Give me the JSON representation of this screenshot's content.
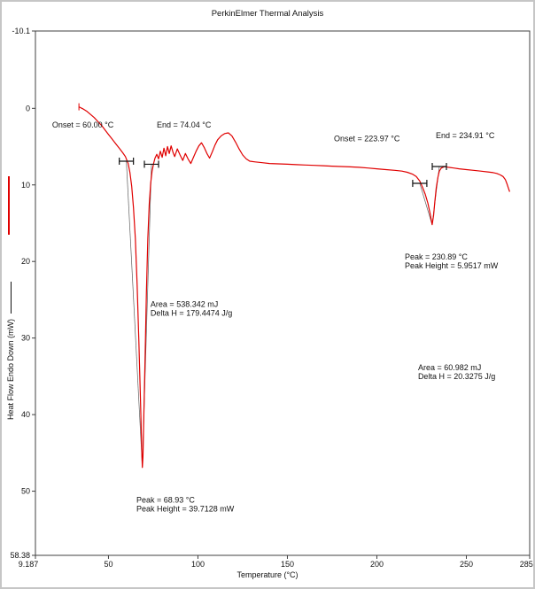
{
  "chart_data": {
    "type": "line",
    "title": "PerkinElmer Thermal Analysis",
    "xlabel": "Temperature (°C)",
    "ylabel": "Heat Flow Endo Down (mW)",
    "xlim": [
      9.187,
      285.4
    ],
    "ylim": [
      -10.1,
      58.38
    ],
    "y_axis_direction": "down",
    "grid": false,
    "colors": {
      "frame": "#404040",
      "text": "#111111",
      "tangent": "#606060"
    },
    "x_ticks": [
      {
        "v": 9.187,
        "label": "9.187"
      },
      {
        "v": 50,
        "label": "50"
      },
      {
        "v": 100,
        "label": "100"
      },
      {
        "v": 150,
        "label": "150"
      },
      {
        "v": 200,
        "label": "200"
      },
      {
        "v": 250,
        "label": "250"
      },
      {
        "v": 285.4,
        "label": "285.4"
      }
    ],
    "y_ticks": [
      {
        "v": -10.1,
        "label": "-10.1"
      },
      {
        "v": 0,
        "label": "0"
      },
      {
        "v": 10,
        "label": "10"
      },
      {
        "v": 20,
        "label": "20"
      },
      {
        "v": 30,
        "label": "30"
      },
      {
        "v": 40,
        "label": "40"
      },
      {
        "v": 50,
        "label": "50"
      },
      {
        "v": 58.38,
        "label": "58.38"
      }
    ],
    "series": [
      {
        "name": "Heat Flow Endo Down",
        "color": "#e00000",
        "points": [
          [
            33.5,
            -0.2
          ],
          [
            36,
            0.1
          ],
          [
            38,
            0.4
          ],
          [
            40,
            0.8
          ],
          [
            42,
            1.2
          ],
          [
            44,
            1.7
          ],
          [
            46,
            2.2
          ],
          [
            48,
            2.8
          ],
          [
            50,
            3.4
          ],
          [
            52,
            4.0
          ],
          [
            54,
            4.6
          ],
          [
            56,
            5.2
          ],
          [
            58,
            5.8
          ],
          [
            59.5,
            6.3
          ],
          [
            61,
            7.2
          ],
          [
            62,
            8.4
          ],
          [
            63,
            10.2
          ],
          [
            64,
            13
          ],
          [
            65,
            17
          ],
          [
            66,
            23
          ],
          [
            67,
            30.5
          ],
          [
            68,
            39
          ],
          [
            68.6,
            44.5
          ],
          [
            68.93,
            46.9
          ],
          [
            69.3,
            45.5
          ],
          [
            69.8,
            40
          ],
          [
            70.5,
            32
          ],
          [
            71.2,
            24
          ],
          [
            72,
            17
          ],
          [
            72.8,
            12.5
          ],
          [
            73.6,
            9.8
          ],
          [
            74.4,
            8.2
          ],
          [
            75.2,
            7.2
          ],
          [
            76,
            6.5
          ],
          [
            77,
            6.0
          ],
          [
            78,
            6.6
          ],
          [
            79,
            5.6
          ],
          [
            80,
            6.4
          ],
          [
            81,
            5.2
          ],
          [
            82,
            6.2
          ],
          [
            83,
            5.0
          ],
          [
            84,
            5.9
          ],
          [
            85,
            4.9
          ],
          [
            86,
            5.7
          ],
          [
            87,
            6.3
          ],
          [
            88.5,
            5.3
          ],
          [
            90,
            6.1
          ],
          [
            91.5,
            6.8
          ],
          [
            93,
            5.9
          ],
          [
            94.5,
            6.6
          ],
          [
            96,
            7.2
          ],
          [
            97.5,
            6.4
          ],
          [
            99,
            5.6
          ],
          [
            100.5,
            4.9
          ],
          [
            102,
            4.5
          ],
          [
            103.5,
            5.1
          ],
          [
            105,
            5.9
          ],
          [
            106.5,
            6.5
          ],
          [
            108,
            5.7
          ],
          [
            109.5,
            4.8
          ],
          [
            111,
            4.1
          ],
          [
            113,
            3.6
          ],
          [
            115,
            3.3
          ],
          [
            117,
            3.2
          ],
          [
            119,
            3.6
          ],
          [
            121,
            4.4
          ],
          [
            123,
            5.3
          ],
          [
            125,
            6.1
          ],
          [
            127,
            6.6
          ],
          [
            129,
            6.9
          ],
          [
            132,
            7.0
          ],
          [
            136,
            7.1
          ],
          [
            140,
            7.2
          ],
          [
            145,
            7.25
          ],
          [
            150,
            7.3
          ],
          [
            155,
            7.35
          ],
          [
            160,
            7.4
          ],
          [
            165,
            7.45
          ],
          [
            170,
            7.5
          ],
          [
            175,
            7.55
          ],
          [
            180,
            7.6
          ],
          [
            185,
            7.65
          ],
          [
            190,
            7.7
          ],
          [
            195,
            7.8
          ],
          [
            200,
            7.9
          ],
          [
            205,
            8.0
          ],
          [
            210,
            8.1
          ],
          [
            214,
            8.2
          ],
          [
            217,
            8.35
          ],
          [
            220,
            8.6
          ],
          [
            222,
            8.9
          ],
          [
            223.97,
            9.5
          ],
          [
            225.5,
            10.3
          ],
          [
            227,
            11.2
          ],
          [
            228.5,
            12.4
          ],
          [
            229.8,
            13.8
          ],
          [
            230.89,
            15.2
          ],
          [
            231.7,
            14.0
          ],
          [
            232.4,
            12.2
          ],
          [
            233.2,
            10.4
          ],
          [
            234.1,
            9.0
          ],
          [
            234.91,
            8.2
          ],
          [
            236,
            7.8
          ],
          [
            238,
            7.6
          ],
          [
            240,
            7.7
          ],
          [
            243,
            7.8
          ],
          [
            246,
            7.9
          ],
          [
            250,
            8.0
          ],
          [
            254,
            8.1
          ],
          [
            258,
            8.2
          ],
          [
            262,
            8.3
          ],
          [
            265,
            8.4
          ],
          [
            267,
            8.5
          ],
          [
            269,
            8.7
          ],
          [
            270.5,
            8.9
          ],
          [
            271.8,
            9.3
          ],
          [
            272.8,
            9.9
          ],
          [
            273.6,
            10.5
          ],
          [
            274.2,
            10.9
          ]
        ]
      }
    ],
    "peaks": [
      {
        "onset_c": 60.0,
        "end_c": 74.04,
        "peak_c": 68.93,
        "peak_height_mw": 39.7128,
        "area_mj": 538.342,
        "delta_h_j_per_g": 179.4474
      },
      {
        "onset_c": 223.97,
        "end_c": 234.91,
        "peak_c": 230.89,
        "peak_height_mw": 5.9517,
        "area_mj": 60.982,
        "delta_h_j_per_g": 20.3275
      }
    ],
    "peak_markers": [
      {
        "t": 60.0,
        "mw": 6.9
      },
      {
        "t": 74.04,
        "mw": 7.3
      },
      {
        "t": 223.97,
        "mw": 9.8
      },
      {
        "t": 234.91,
        "mw": 7.6
      }
    ],
    "tangent_lines": [
      {
        "from": [
          68.93,
          46.9
        ],
        "to": [
          60.0,
          6.9
        ]
      },
      {
        "from": [
          68.93,
          46.9
        ],
        "to": [
          74.04,
          7.3
        ]
      },
      {
        "from": [
          230.89,
          15.2
        ],
        "to": [
          223.97,
          9.8
        ]
      },
      {
        "from": [
          230.89,
          15.2
        ],
        "to": [
          234.91,
          7.6
        ]
      }
    ],
    "annotations": [
      {
        "id": "onset-1",
        "lines": [
          "Onset = 60.00 °C"
        ],
        "t": 18.5,
        "mw": 1.6
      },
      {
        "id": "end-1",
        "lines": [
          "End = 74.04 °C"
        ],
        "t": 77.0,
        "mw": 1.6
      },
      {
        "id": "onset-2",
        "lines": [
          "Onset = 223.97 °C"
        ],
        "t": 176.0,
        "mw": 3.4
      },
      {
        "id": "end-2",
        "lines": [
          "End = 234.91 °C"
        ],
        "t": 232.9,
        "mw": 3.0
      },
      {
        "id": "peak-2",
        "lines": [
          "Peak = 230.89 °C",
          "Peak Height = 5.9517 mW"
        ],
        "t": 215.6,
        "mw": 18.8
      },
      {
        "id": "area-1",
        "lines": [
          "Area = 538.342 mJ",
          "Delta H = 179.4474 J/g"
        ],
        "t": 73.5,
        "mw": 25.0
      },
      {
        "id": "area-2",
        "lines": [
          "Area = 60.982 mJ",
          "Delta H = 20.3275 J/g"
        ],
        "t": 223.0,
        "mw": 33.3
      },
      {
        "id": "peak-1",
        "lines": [
          "Peak = 68.93 °C",
          "Peak Height = 39.7128 mW"
        ],
        "t": 65.6,
        "mw": 50.6
      }
    ]
  }
}
